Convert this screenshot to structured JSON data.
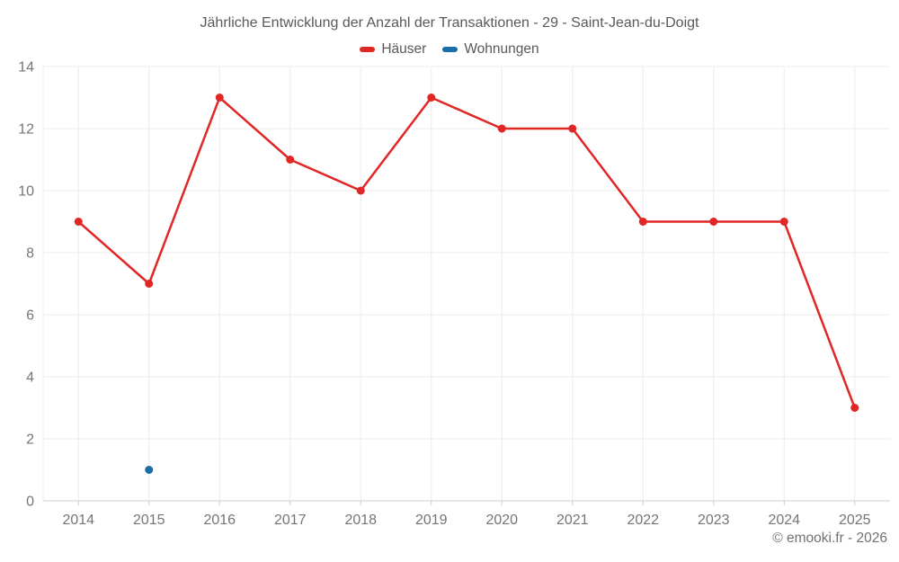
{
  "footer": {
    "copyright": "© emooki.fr - 2026"
  },
  "chart_data": {
    "type": "line",
    "title": "Jährliche Entwicklung der Anzahl der Transaktionen - 29 - Saint-Jean-du-Doigt",
    "categories": [
      "2014",
      "2015",
      "2016",
      "2017",
      "2018",
      "2019",
      "2020",
      "2021",
      "2022",
      "2023",
      "2024",
      "2025"
    ],
    "series": [
      {
        "name": "Häuser",
        "color": "#e12626",
        "values": [
          9,
          7,
          13,
          11,
          10,
          13,
          12,
          12,
          9,
          9,
          9,
          3
        ]
      },
      {
        "name": "Wohnungen",
        "color": "#1b6ca8",
        "values": [
          null,
          1,
          null,
          null,
          null,
          null,
          null,
          null,
          null,
          null,
          null,
          null
        ]
      }
    ],
    "xlabel": "",
    "ylabel": "",
    "ylim": [
      0,
      14
    ],
    "yticks": [
      0,
      2,
      4,
      6,
      8,
      10,
      12,
      14
    ],
    "grid": true,
    "legend_position": "top",
    "colors": {
      "grid_line": "#ebebeb",
      "axis_line": "#cccccc",
      "tick_label": "#737577",
      "title_text": "#58595b"
    }
  }
}
